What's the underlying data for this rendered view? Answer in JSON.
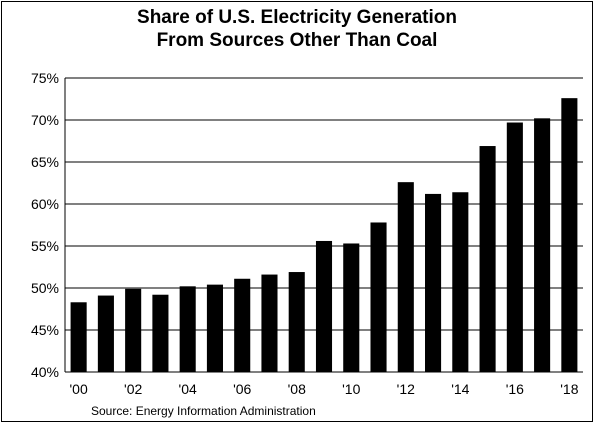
{
  "chart_data": {
    "type": "bar",
    "title": "Share of U.S. Electricity Generation",
    "subtitle": "From Sources Other Than Coal",
    "source": "Source: Energy Information Administration",
    "categories": [
      "2000",
      "2001",
      "2002",
      "2003",
      "2004",
      "2005",
      "2006",
      "2007",
      "2008",
      "2009",
      "2010",
      "2011",
      "2012",
      "2013",
      "2014",
      "2015",
      "2016",
      "2017",
      "2018"
    ],
    "values": [
      48.3,
      49.1,
      49.9,
      49.2,
      50.2,
      50.4,
      51.1,
      51.6,
      51.9,
      55.6,
      55.3,
      57.8,
      62.6,
      61.2,
      61.4,
      66.9,
      69.7,
      70.2,
      72.6
    ],
    "x_tick_labels": [
      "'00",
      "",
      "'02",
      "",
      "'04",
      "",
      "'06",
      "",
      "'08",
      "",
      "'10",
      "",
      "'12",
      "",
      "'14",
      "",
      "'16",
      "",
      "'18"
    ],
    "y_ticks": [
      40,
      45,
      50,
      55,
      60,
      65,
      70,
      75
    ],
    "y_tick_labels": [
      "40%",
      "45%",
      "50%",
      "55%",
      "60%",
      "65%",
      "70%",
      "75%"
    ],
    "ylim": [
      40,
      75
    ],
    "xlabel": "",
    "ylabel": "",
    "grid": true,
    "bar_color": "#000000",
    "grid_color": "#000000"
  }
}
